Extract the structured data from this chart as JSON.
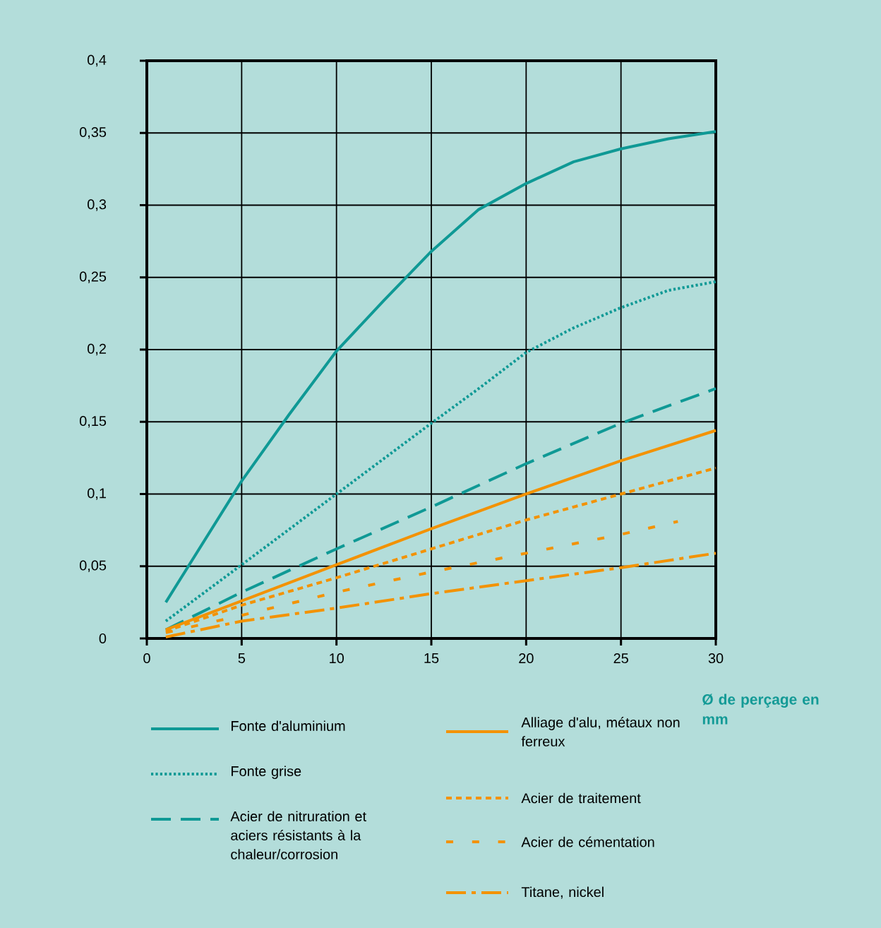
{
  "chart_data": {
    "type": "line",
    "xlabel": "Ø de perçage en mm",
    "xlim": [
      0,
      30
    ],
    "ylim": [
      0,
      0.4
    ],
    "xticks": [
      0,
      5,
      10,
      15,
      20,
      25,
      30
    ],
    "yticks": [
      {
        "value": 0,
        "label": "0"
      },
      {
        "value": 0.05,
        "label": "0,05"
      },
      {
        "value": 0.1,
        "label": "0,1"
      },
      {
        "value": 0.15,
        "label": "0,15"
      },
      {
        "value": 0.2,
        "label": "0,2"
      },
      {
        "value": 0.25,
        "label": "0,25"
      },
      {
        "value": 0.3,
        "label": "0,3"
      },
      {
        "value": 0.35,
        "label": "0,35"
      },
      {
        "value": 0.4,
        "label": "0,4"
      }
    ],
    "grid": true,
    "legend": "bottom",
    "marker": "none",
    "series": [
      {
        "name": "Fonte d'aluminium",
        "color": "#0f9995",
        "line_style": "solid",
        "x": [
          1,
          5,
          7.5,
          10,
          12.5,
          15,
          17.5,
          20,
          22.5,
          25,
          27.5,
          30
        ],
        "values": [
          0.025,
          0.109,
          0.155,
          0.199,
          0.234,
          0.268,
          0.297,
          0.315,
          0.33,
          0.339,
          0.346,
          0.351
        ]
      },
      {
        "name": "Fonte grise",
        "color": "#0f9995",
        "line_style": "dotted",
        "x": [
          1,
          5,
          10,
          15,
          17.5,
          20,
          22.5,
          25,
          27.5,
          30
        ],
        "values": [
          0.012,
          0.051,
          0.1,
          0.149,
          0.173,
          0.198,
          0.215,
          0.229,
          0.241,
          0.247
        ]
      },
      {
        "name": "Acier de nitruration et aciers résistants à la chaleur/corrosion",
        "color": "#0f9995",
        "line_style": "loosely dashed",
        "x": [
          1,
          5,
          10,
          15,
          20,
          25,
          30
        ],
        "values": [
          0.006,
          0.032,
          0.062,
          0.091,
          0.121,
          0.149,
          0.173
        ]
      },
      {
        "name": "Alliage d'alu, métaux non ferreux",
        "color": "#f39200",
        "line_style": "solid",
        "x": [
          1,
          5,
          10,
          15,
          20,
          25,
          30
        ],
        "values": [
          0.006,
          0.026,
          0.051,
          0.076,
          0.1,
          0.123,
          0.144
        ]
      },
      {
        "name": "Acier de traitement",
        "color": "#f39200",
        "line_style": "dashed",
        "x": [
          1,
          5,
          10,
          15,
          20,
          25,
          30
        ],
        "values": [
          0.005,
          0.023,
          0.042,
          0.062,
          0.082,
          0.1,
          0.118
        ]
      },
      {
        "name": "Acier de cémentation",
        "color": "#f39200",
        "line_style": "sparse dashed",
        "x": [
          1,
          5,
          10,
          15,
          20,
          25,
          28
        ],
        "values": [
          0.004,
          0.016,
          0.032,
          0.046,
          0.059,
          0.072,
          0.081
        ]
      },
      {
        "name": "Titane, nickel",
        "color": "#f39200",
        "line_style": "dashdotted",
        "x": [
          1,
          5,
          10,
          15,
          20,
          25,
          30
        ],
        "values": [
          0.001,
          0.012,
          0.021,
          0.031,
          0.04,
          0.049,
          0.059
        ]
      }
    ]
  }
}
